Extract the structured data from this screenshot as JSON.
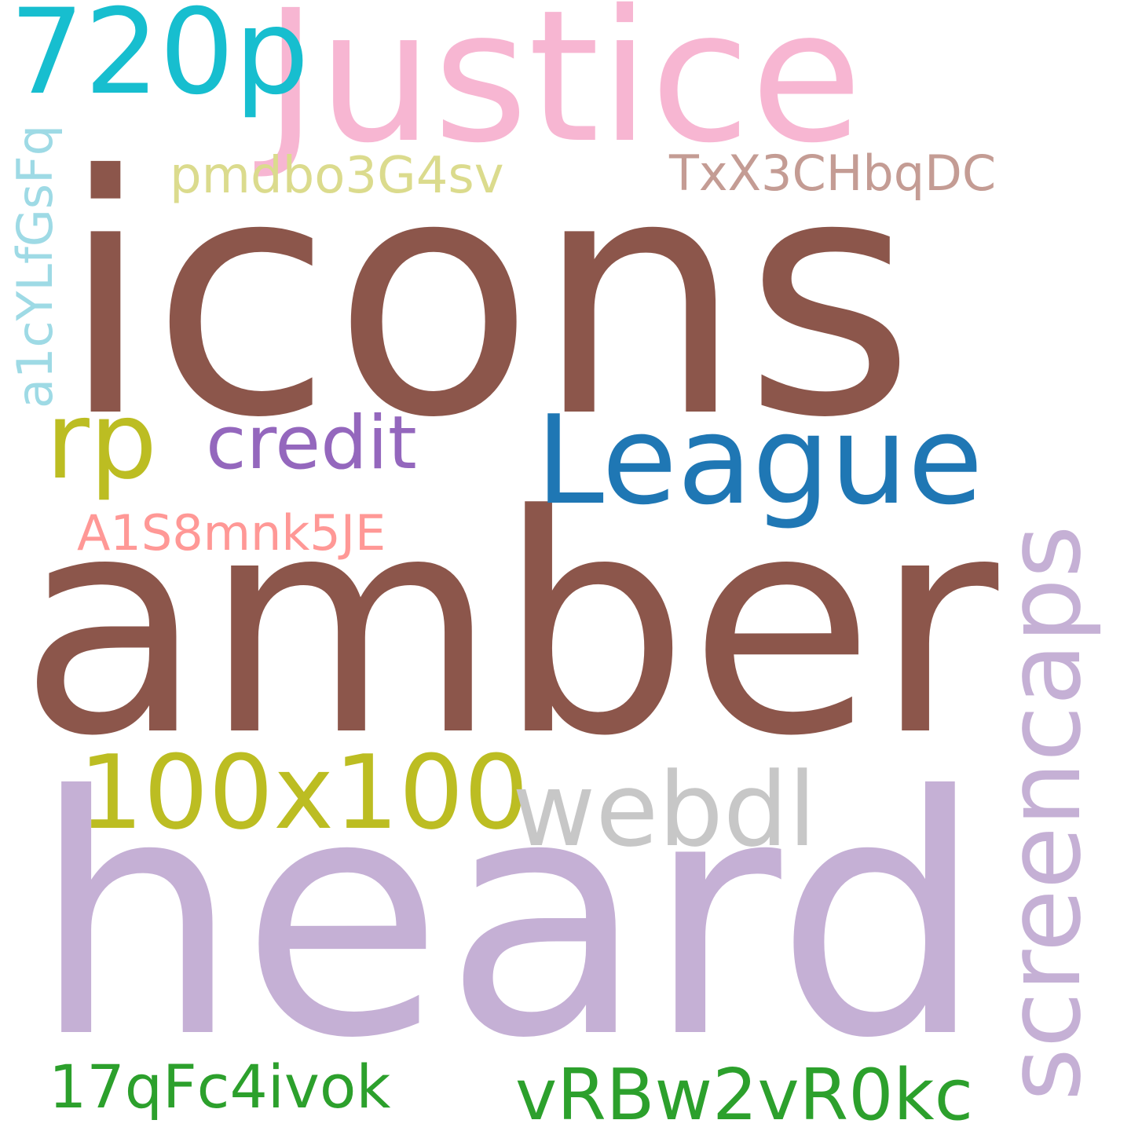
{
  "words": {
    "justice": {
      "text": "Justice",
      "color": "#f7b6d2"
    },
    "p720": {
      "text": "720p",
      "color": "#17becf"
    },
    "a1cy": {
      "text": "a1cYLfGsFq",
      "color": "#9edae5"
    },
    "pmdbo": {
      "text": "pmdbo3G4sv",
      "color": "#dbdb8d"
    },
    "txx": {
      "text": "TxX3CHbqDC",
      "color": "#c49c94"
    },
    "icons": {
      "text": "icons",
      "color": "#8c564b"
    },
    "rp": {
      "text": "rp",
      "color": "#bcbd22"
    },
    "credit": {
      "text": "credit",
      "color": "#9467bd"
    },
    "league": {
      "text": "League",
      "color": "#1f77b4"
    },
    "screencaps": {
      "text": "screencaps",
      "color": "#c5b0d5"
    },
    "a1s8": {
      "text": "A1S8mnk5JE",
      "color": "#ff9896"
    },
    "amber": {
      "text": "amber",
      "color": "#8c564b"
    },
    "x100": {
      "text": "100x100",
      "color": "#bcbd22"
    },
    "webdl": {
      "text": "webdl",
      "color": "#c7c7c7"
    },
    "heard": {
      "text": "heard",
      "color": "#c5b0d5"
    },
    "q17": {
      "text": "17qFc4ivok",
      "color": "#2ca02c"
    },
    "vrbw": {
      "text": "vRBw2vR0kc",
      "color": "#2ca02c"
    }
  }
}
